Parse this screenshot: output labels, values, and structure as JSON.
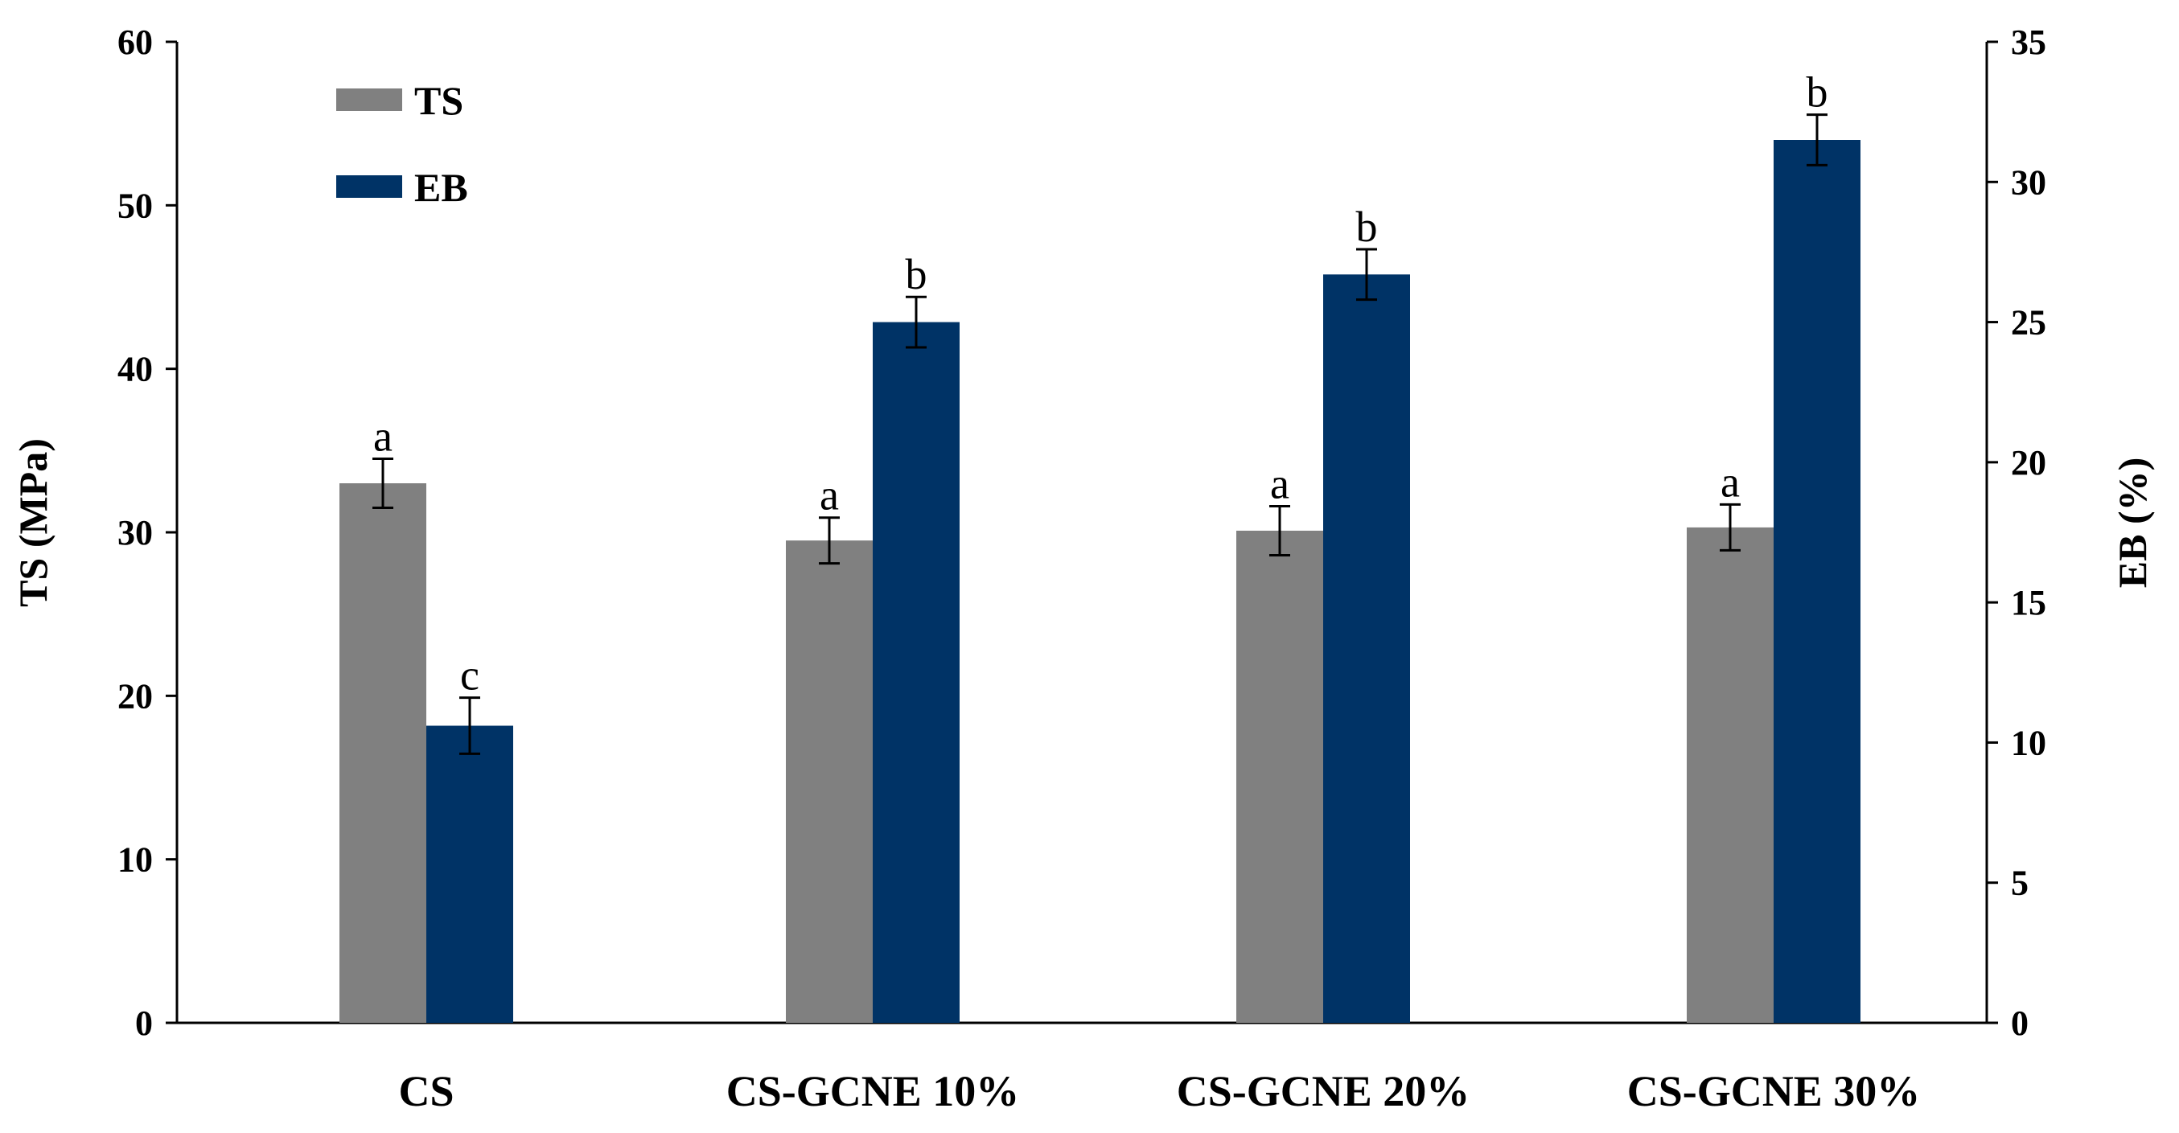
{
  "chart_data": {
    "type": "bar",
    "categories": [
      "CS",
      "CS-GCNE 10%",
      "CS-GCNE 20%",
      "CS-GCNE 30%"
    ],
    "series": [
      {
        "name": "TS",
        "axis": "left",
        "color": "#808080",
        "values": [
          33.0,
          29.5,
          30.1,
          30.3
        ],
        "errors": [
          1.5,
          1.4,
          1.5,
          1.4
        ],
        "labels": [
          "a",
          "a",
          "a",
          "a"
        ]
      },
      {
        "name": "EB",
        "axis": "right",
        "color": "#003366",
        "values": [
          10.6,
          25.0,
          26.7,
          31.5
        ],
        "errors": [
          1.0,
          0.9,
          0.9,
          0.9
        ],
        "labels": [
          "c",
          "b",
          "b",
          "b"
        ]
      }
    ],
    "y_left": {
      "label": "TS (MPa)",
      "lim": [
        0,
        60
      ],
      "ticks": [
        0,
        10,
        20,
        30,
        40,
        50,
        60
      ],
      "tick_labels": [
        "0",
        "10",
        "20",
        "30",
        "40",
        "50",
        "60"
      ]
    },
    "y_right": {
      "label": "EB (%)",
      "lim": [
        0,
        35
      ],
      "ticks": [
        0,
        5,
        10,
        15,
        20,
        25,
        30,
        35
      ],
      "tick_labels": [
        "0",
        "5",
        "10",
        "15",
        "20",
        "25",
        "30",
        "35"
      ]
    },
    "legend": {
      "position": "top-left",
      "entries": [
        "TS",
        "EB"
      ]
    },
    "grid": false
  }
}
